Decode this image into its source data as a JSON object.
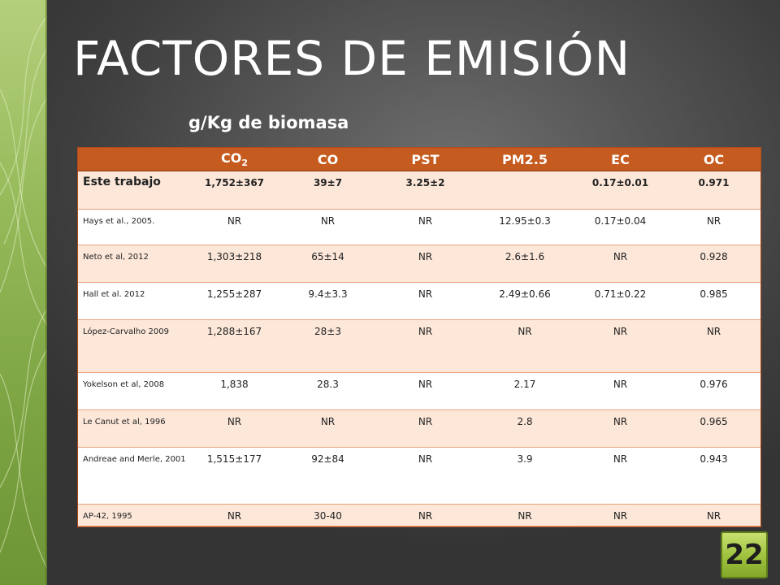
{
  "slide": {
    "title": "FACTORES DE EMISIÓN",
    "subtitle": "g/Kg de biomasa",
    "page_number": "22"
  },
  "table": {
    "headers": [
      "",
      "CO",
      "CO",
      "PST",
      "PM2.5",
      "EC",
      "OC"
    ],
    "header_co2_subscript": "2",
    "rows": [
      [
        "Este trabajo",
        "1,752±367",
        "39±7",
        "3.25±2",
        "",
        "0.17±0.01",
        "0.971"
      ],
      [
        "Hays et al., 2005.",
        "NR",
        "NR",
        "NR",
        "12.95±0.3",
        "0.17±0.04",
        "NR"
      ],
      [
        "Neto et al, 2012",
        "1,303±218",
        "65±14",
        "NR",
        "2.6±1.6",
        "NR",
        "0.928"
      ],
      [
        "Hall et al. 2012",
        "1,255±287",
        "9.4±3.3",
        "NR",
        "2.49±0.66",
        "0.71±0.22",
        "0.985"
      ],
      [
        "López-Carvalho 2009",
        "1,288±167",
        "28±3",
        "NR",
        "NR",
        "NR",
        "NR"
      ],
      [
        "Yokelson et al, 2008",
        "1,838",
        "28.3",
        "NR",
        "2.17",
        "NR",
        "0.976"
      ],
      [
        "Le Canut et al, 1996",
        "NR",
        "NR",
        "NR",
        "2.8",
        "NR",
        "0.965"
      ],
      [
        "Andreae and Merle, 2001",
        "1,515±177",
        "92±84",
        "NR",
        "3.9",
        "NR",
        "0.943"
      ],
      [
        "AP-42, 1995",
        "NR",
        "30-40",
        "NR",
        "NR",
        "NR",
        "NR"
      ]
    ]
  },
  "colors": {
    "header_bg": "#c65b1f",
    "row_tint": "#fce7d9",
    "accent_green": "#96ba5a"
  }
}
